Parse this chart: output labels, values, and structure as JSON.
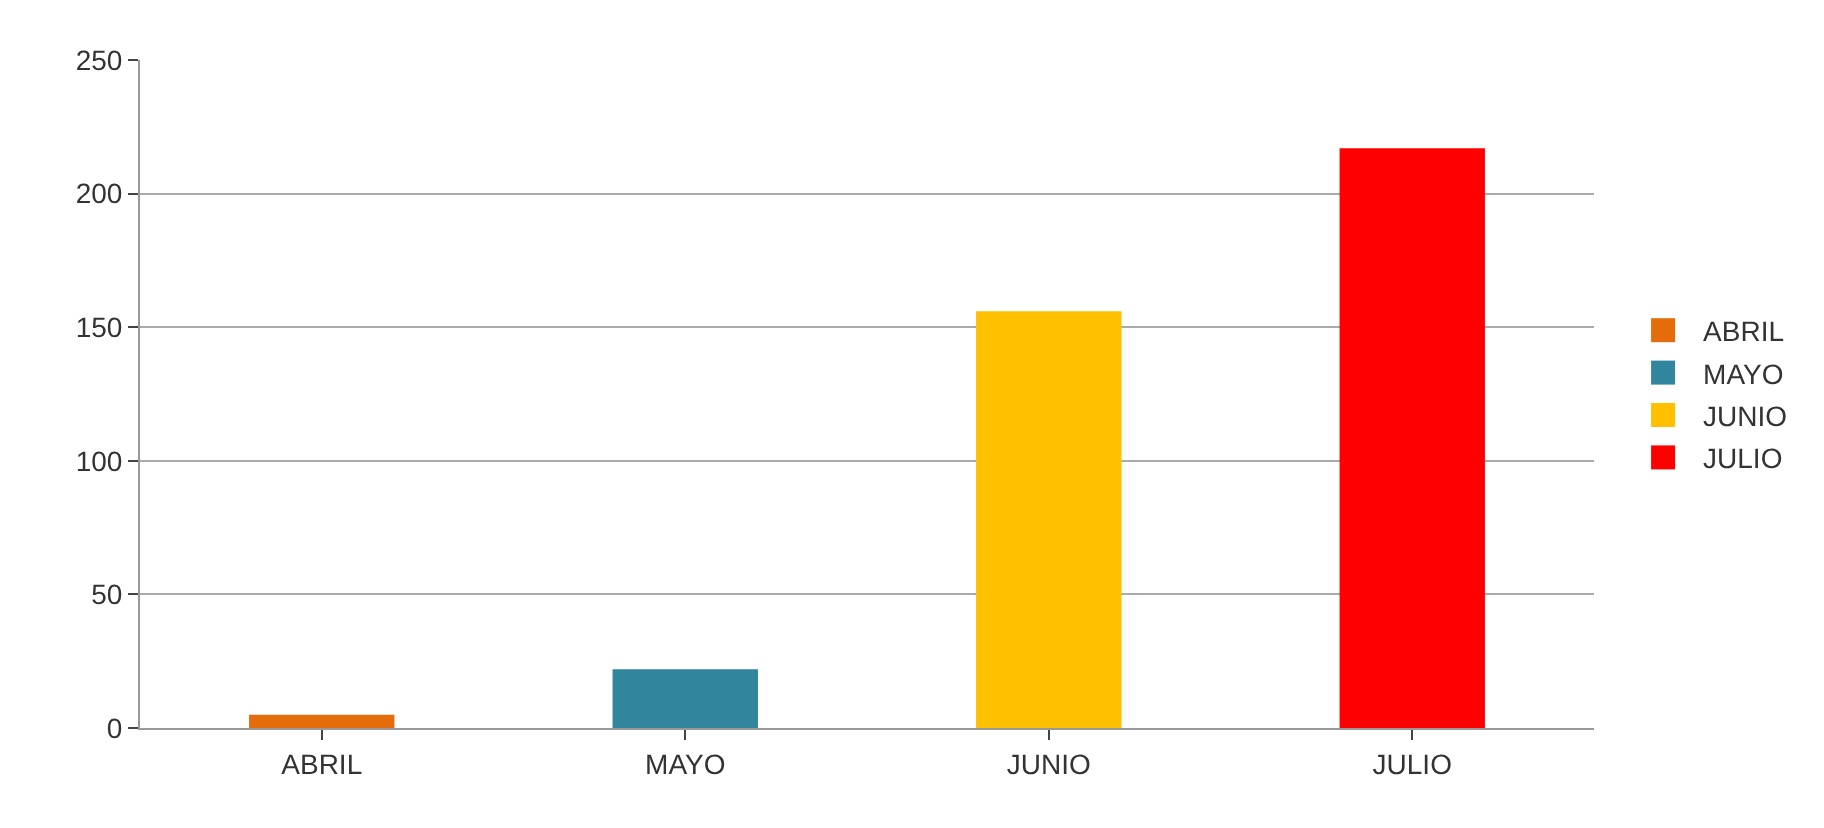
{
  "chart_data": {
    "type": "bar",
    "categories": [
      "ABRIL",
      "MAYO",
      "JUNIO",
      "JULIO"
    ],
    "series": [
      {
        "name": "ABRIL",
        "color": "#e46c0a",
        "values": [
          5,
          null,
          null,
          null
        ]
      },
      {
        "name": "MAYO",
        "color": "#31859c",
        "values": [
          null,
          22,
          null,
          null
        ]
      },
      {
        "name": "JUNIO",
        "color": "#ffc000",
        "values": [
          null,
          null,
          156,
          null
        ]
      },
      {
        "name": "JULIO",
        "color": "#ff0000",
        "values": [
          null,
          null,
          null,
          217
        ]
      }
    ],
    "ylim": [
      0,
      250
    ],
    "yticks": [
      0,
      50,
      100,
      150,
      200,
      250
    ],
    "grid": "y",
    "legend": "right"
  }
}
